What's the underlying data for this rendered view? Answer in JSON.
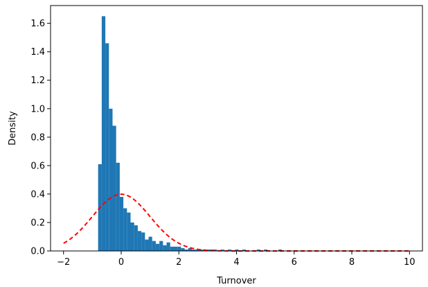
{
  "chart_data": {
    "type": "bar",
    "title": "",
    "xlabel": "Turnover",
    "ylabel": "Density",
    "xlim": [
      -2.45,
      10.45
    ],
    "ylim": [
      0,
      1.725
    ],
    "xticks": [
      -2,
      0,
      2,
      4,
      6,
      8,
      10
    ],
    "yticks": [
      0.0,
      0.2,
      0.4,
      0.6,
      0.8,
      1.0,
      1.2,
      1.4,
      1.6
    ],
    "grid": false,
    "legend": "none",
    "histogram": {
      "bin_start": -0.8,
      "bin_width": 0.125,
      "densities": [
        0.61,
        1.65,
        1.46,
        1.0,
        0.88,
        0.62,
        0.38,
        0.3,
        0.27,
        0.2,
        0.18,
        0.14,
        0.13,
        0.08,
        0.1,
        0.07,
        0.05,
        0.07,
        0.04,
        0.06,
        0.03,
        0.03,
        0.03,
        0.02,
        0.01,
        0.02,
        0.01,
        0.01,
        0.01,
        0.01,
        0.01,
        0.01,
        0.01,
        0.0,
        0.01,
        0.0,
        0.01,
        0.0,
        0.01,
        0.0,
        0.01,
        0.0,
        0.0,
        0.0,
        0.01,
        0.0,
        0.01,
        0.0,
        0.0,
        0.0,
        0.01,
        0.0,
        0.0,
        0.0,
        0.0,
        0.0
      ],
      "color": "#1f77b4"
    },
    "normal_curve": {
      "mean": 0.0,
      "std": 1.0,
      "x_range": [
        -2,
        10
      ],
      "color": "#ff0000",
      "style": "dashed"
    }
  }
}
